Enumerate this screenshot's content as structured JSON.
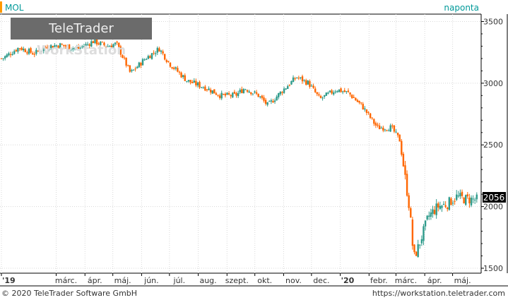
{
  "symbol": "MOL",
  "interval": "naponta",
  "watermark": {
    "part1": "TeleTrader",
    "part2": "WorkStation"
  },
  "copyright": "© 2020 TeleTrader Software GmbH",
  "url": "https://workstation.teletrader.com",
  "colors": {
    "up": "#2e9b8b",
    "down": "#ff6600",
    "accent": "#ff9900",
    "grid": "#d8d8d8"
  },
  "chart_data": {
    "type": "candlestick",
    "ylim": [
      1460,
      3560
    ],
    "y_ticks": [
      1500,
      2000,
      2500,
      3000,
      3500
    ],
    "x_ticks": [
      "'19",
      "márc.",
      "ápr.",
      "máj.",
      "jún.",
      "júl.",
      "aug.",
      "szept.",
      "okt.",
      "nov.",
      "dec.",
      "'20",
      "febr.",
      "márc.",
      "ápr.",
      "máj."
    ],
    "last_price": "2056",
    "series_path": [
      [
        "2019-01-02",
        3200
      ],
      [
        "2019-01-20",
        3290
      ],
      [
        "2019-02-05",
        3240
      ],
      [
        "2019-02-20",
        3300
      ],
      [
        "2019-03-05",
        3310
      ],
      [
        "2019-03-25",
        3280
      ],
      [
        "2019-04-10",
        3340
      ],
      [
        "2019-04-25",
        3300
      ],
      [
        "2019-05-05",
        3320
      ],
      [
        "2019-05-20",
        3080
      ],
      [
        "2019-06-05",
        3200
      ],
      [
        "2019-06-20",
        3280
      ],
      [
        "2019-07-01",
        3160
      ],
      [
        "2019-07-20",
        3020
      ],
      [
        "2019-08-10",
        2960
      ],
      [
        "2019-08-25",
        2900
      ],
      [
        "2019-09-10",
        2900
      ],
      [
        "2019-09-20",
        2960
      ],
      [
        "2019-10-05",
        2900
      ],
      [
        "2019-10-15",
        2820
      ],
      [
        "2019-11-01",
        2950
      ],
      [
        "2019-11-15",
        3050
      ],
      [
        "2019-11-28",
        3000
      ],
      [
        "2019-12-10",
        2870
      ],
      [
        "2019-12-28",
        2950
      ],
      [
        "2020-01-10",
        2920
      ],
      [
        "2020-01-25",
        2810
      ],
      [
        "2020-02-10",
        2640
      ],
      [
        "2020-02-25",
        2640
      ],
      [
        "2020-03-05",
        2540
      ],
      [
        "2020-03-10",
        2280
      ],
      [
        "2020-03-16",
        1960
      ],
      [
        "2020-03-20",
        1580
      ],
      [
        "2020-03-25",
        1670
      ],
      [
        "2020-04-05",
        1920
      ],
      [
        "2020-04-15",
        2000
      ],
      [
        "2020-04-25",
        2020
      ],
      [
        "2020-05-05",
        2080
      ],
      [
        "2020-05-15",
        2060
      ],
      [
        "2020-05-27",
        2056
      ]
    ]
  }
}
